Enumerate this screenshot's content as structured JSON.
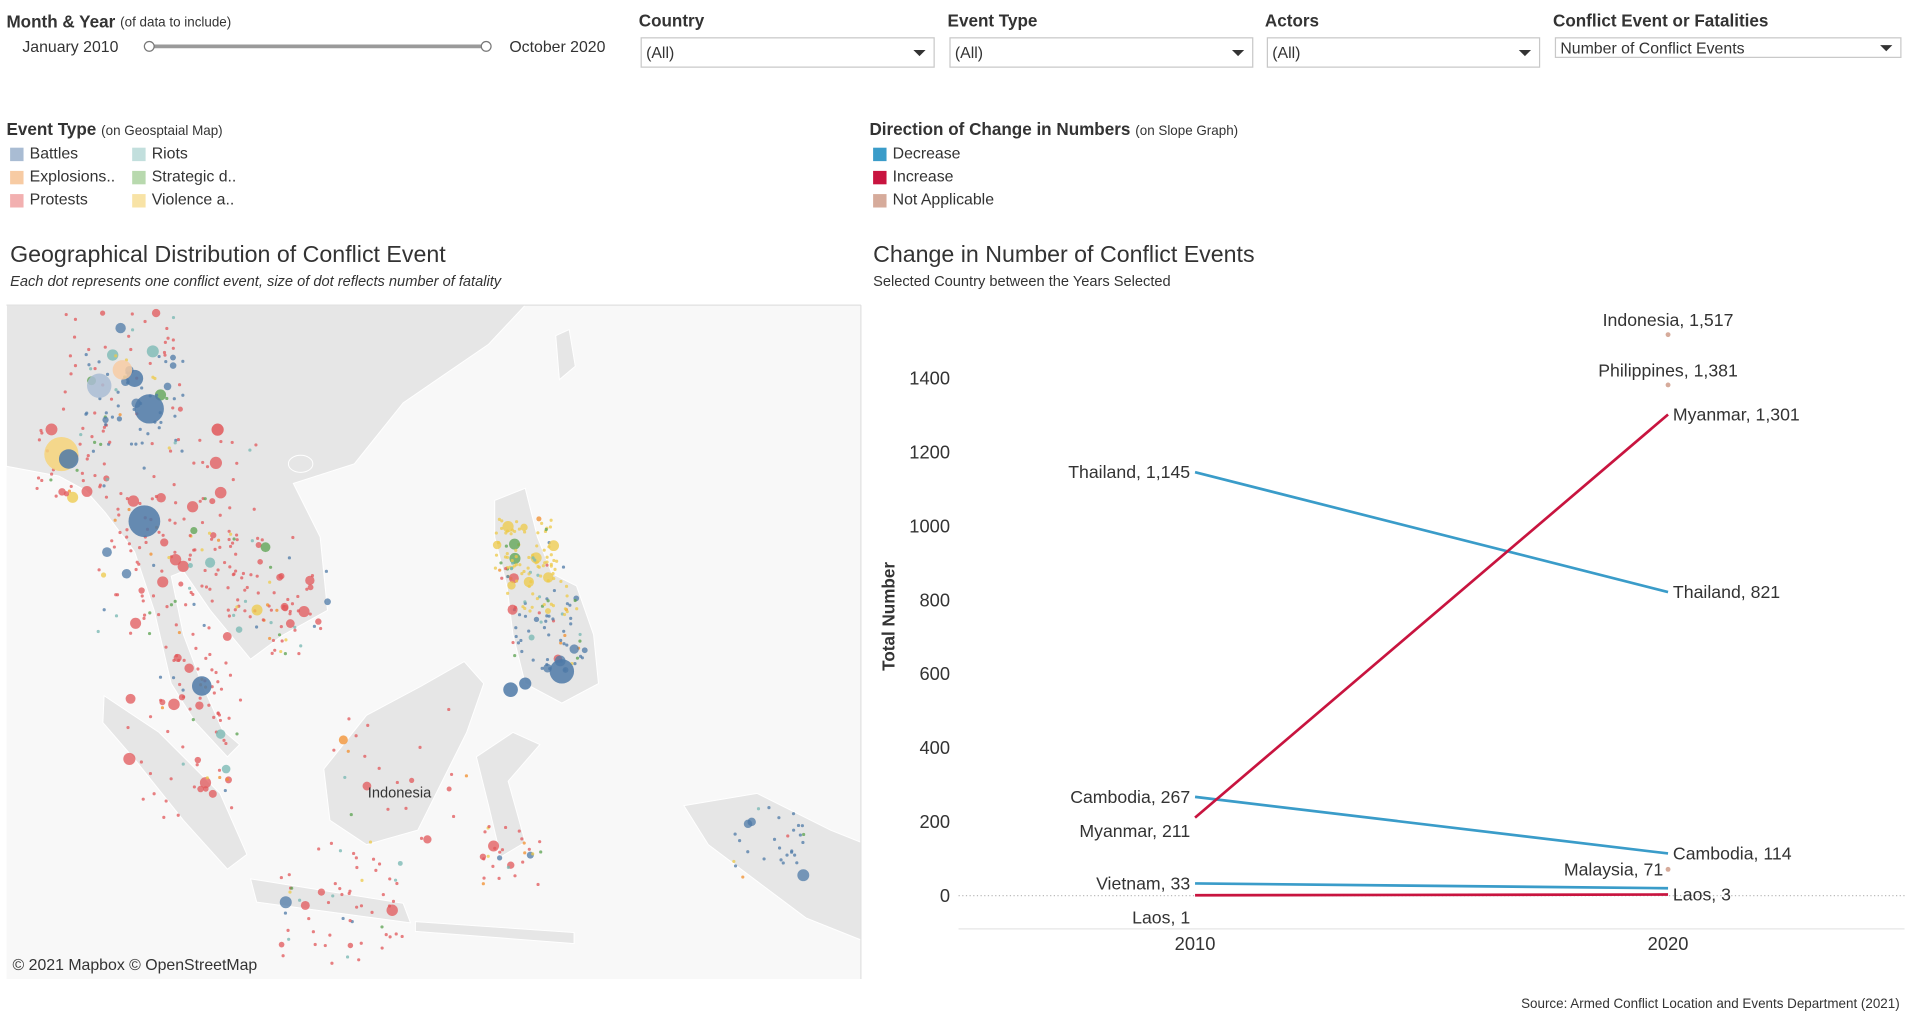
{
  "filters": {
    "date": {
      "label": "Month & Year",
      "note": "(of data to include)",
      "start": "January 2010",
      "end": "October 2020"
    },
    "dropdowns": [
      {
        "label": "Country",
        "value": "(All)"
      },
      {
        "label": "Event Type",
        "value": "(All)"
      },
      {
        "label": "Actors",
        "value": "(All)"
      },
      {
        "label": "Conflict Event or Fatalities",
        "value": "Number of Conflict Events"
      }
    ]
  },
  "map_legend": {
    "title": "Event Type",
    "note": "(on Geosptaial Map)",
    "items": [
      {
        "name": "Battles",
        "color": "#a9bcd3"
      },
      {
        "name": "Explosions..",
        "color": "#f7cba3"
      },
      {
        "name": "Protests",
        "color": "#f2b0b0"
      },
      {
        "name": "Riots",
        "color": "#c2dfdd"
      },
      {
        "name": "Strategic d..",
        "color": "#b8d9ae"
      },
      {
        "name": "Violence a..",
        "color": "#f8e3a6"
      }
    ]
  },
  "map": {
    "title": "Geographical Distribution of Conflict Event",
    "subtitle": "Each dot represents one conflict event, size of dot reflects number of fatality",
    "place_label": "Indonesia",
    "attribution": "© 2021 Mapbox © OpenStreetMap"
  },
  "chart_data": {
    "type": "line",
    "title": "Change in Number of Conflict Events",
    "subtitle": "Selected Country between the Years Selected",
    "y_label": "Total Number",
    "legend": {
      "title": "Direction of Change in Numbers",
      "note": "(on Slope Graph)",
      "items": [
        {
          "name": "Decrease",
          "color": "#3a9cc9"
        },
        {
          "name": "Increase",
          "color": "#c8143f"
        },
        {
          "name": "Not Applicable",
          "color": "#d6ab9b"
        }
      ]
    },
    "x": [
      "2010",
      "2020"
    ],
    "series": [
      {
        "color": "#3a9cc9",
        "values": [
          1145,
          821
        ],
        "value_labels": [
          "Thailand, 1,145",
          "Thailand, 821"
        ]
      },
      {
        "color": "#3a9cc9",
        "values": [
          267,
          114
        ],
        "value_labels": [
          "Cambodia, 267",
          "Cambodia, 114"
        ]
      },
      {
        "color": "#c8143f",
        "values": [
          211,
          1301
        ],
        "value_labels": [
          "Myanmar, 211",
          "Myanmar, 1,301"
        ]
      },
      {
        "color": "#3a9cc9",
        "values": [
          33,
          20
        ],
        "value_labels": [
          "Vietnam, 33",
          null
        ]
      },
      {
        "color": "#c8143f",
        "values": [
          1,
          3
        ],
        "value_labels": [
          "Laos, 1",
          "Laos, 3"
        ]
      },
      {
        "color": "#d6ab9b",
        "values": [
          null,
          1517
        ],
        "value_labels": [
          null,
          "Indonesia, 1,517"
        ]
      },
      {
        "color": "#d6ab9b",
        "values": [
          null,
          1381
        ],
        "value_labels": [
          null,
          "Philippines, 1,381"
        ]
      },
      {
        "color": "#d6ab9b",
        "values": [
          null,
          71
        ],
        "value_labels": [
          null,
          "Malaysia, 71"
        ]
      }
    ],
    "ylim": [
      -90,
      1600
    ],
    "yticks": [
      0,
      200,
      400,
      600,
      800,
      1000,
      1200,
      1400
    ],
    "grid": false
  },
  "source": "Source: Armed Conflict Location and Events Department (2021)"
}
